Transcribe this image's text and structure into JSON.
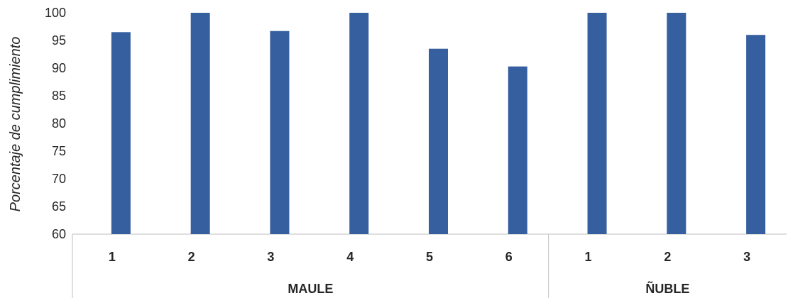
{
  "chart_data": {
    "type": "bar",
    "ylabel": "Porcentaje de cumplimiento",
    "ylim": [
      60,
      100
    ],
    "yticks": [
      60,
      65,
      70,
      75,
      80,
      85,
      90,
      95,
      100
    ],
    "grid": false,
    "bar_color": "#365F9F",
    "groups": [
      {
        "name": "MAULE",
        "categories": [
          "1",
          "2",
          "3",
          "4",
          "5",
          "6"
        ],
        "values": [
          96.5,
          100,
          96.7,
          100,
          93.5,
          90.3
        ]
      },
      {
        "name": "ÑUBLE",
        "categories": [
          "1",
          "2",
          "3"
        ],
        "values": [
          100,
          100,
          96
        ]
      }
    ]
  }
}
